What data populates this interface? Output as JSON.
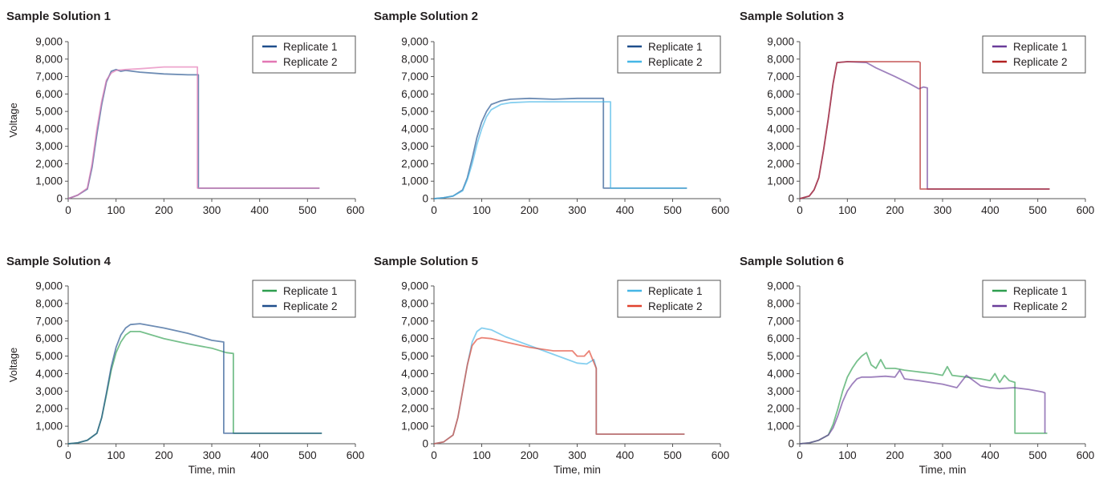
{
  "chart_data": [
    {
      "type": "line",
      "title": "Sample Solution 1",
      "xlabel": "",
      "ylabel": "Voltage",
      "xlim": [
        0,
        600
      ],
      "ylim": [
        0,
        9000
      ],
      "xticks": [
        "0",
        "100",
        "200",
        "300",
        "400",
        "500",
        "600"
      ],
      "yticks": [
        "0",
        "1,000",
        "2,000",
        "3,000",
        "4,000",
        "5,000",
        "6,000",
        "7,000",
        "8,000",
        "9,000"
      ],
      "legend_position": "top-right",
      "series": [
        {
          "name": "Replicate 1",
          "color": "#1f4e8c",
          "x": [
            0,
            20,
            40,
            50,
            60,
            70,
            80,
            90,
            100,
            110,
            120,
            150,
            200,
            250,
            272,
            272,
            300,
            400,
            525
          ],
          "y": [
            0,
            200,
            550,
            1800,
            3700,
            5400,
            6700,
            7300,
            7400,
            7300,
            7350,
            7250,
            7150,
            7100,
            7100,
            600,
            600,
            600,
            600
          ]
        },
        {
          "name": "Replicate 2",
          "color": "#e377b4",
          "x": [
            0,
            20,
            40,
            50,
            60,
            70,
            80,
            90,
            100,
            120,
            150,
            200,
            250,
            270,
            270,
            300,
            400,
            525
          ],
          "y": [
            0,
            200,
            600,
            2000,
            4000,
            5600,
            6800,
            7200,
            7350,
            7400,
            7450,
            7550,
            7550,
            7550,
            600,
            600,
            600,
            600
          ]
        }
      ]
    },
    {
      "type": "line",
      "title": "Sample Solution 2",
      "xlabel": "",
      "ylabel": "",
      "xlim": [
        0,
        600
      ],
      "ylim": [
        0,
        9000
      ],
      "xticks": [
        "0",
        "100",
        "200",
        "300",
        "400",
        "500",
        "600"
      ],
      "yticks": [
        "0",
        "1,000",
        "2,000",
        "3,000",
        "4,000",
        "5,000",
        "6,000",
        "7,000",
        "8,000",
        "9,000"
      ],
      "legend_position": "top-right",
      "series": [
        {
          "name": "Replicate 1",
          "color": "#1f4e8c",
          "x": [
            0,
            20,
            40,
            60,
            70,
            80,
            90,
            100,
            110,
            120,
            140,
            160,
            200,
            250,
            300,
            355,
            355,
            380,
            400,
            530
          ],
          "y": [
            0,
            50,
            150,
            500,
            1200,
            2300,
            3500,
            4400,
            5000,
            5400,
            5600,
            5700,
            5750,
            5700,
            5750,
            5750,
            600,
            600,
            600,
            600
          ]
        },
        {
          "name": "Replicate 2",
          "color": "#45b6e6",
          "x": [
            0,
            20,
            40,
            60,
            70,
            80,
            90,
            100,
            110,
            120,
            140,
            160,
            200,
            250,
            300,
            370,
            370,
            400,
            530
          ],
          "y": [
            0,
            50,
            150,
            450,
            1100,
            2000,
            3100,
            4000,
            4700,
            5100,
            5400,
            5500,
            5550,
            5550,
            5550,
            5550,
            600,
            600,
            600
          ]
        }
      ]
    },
    {
      "type": "line",
      "title": "Sample Solution 3",
      "xlabel": "",
      "ylabel": "",
      "xlim": [
        0,
        600
      ],
      "ylim": [
        0,
        9000
      ],
      "xticks": [
        "0",
        "100",
        "200",
        "300",
        "400",
        "500",
        "600"
      ],
      "yticks": [
        "0",
        "1,000",
        "2,000",
        "3,000",
        "4,000",
        "5,000",
        "6,000",
        "7,000",
        "8,000",
        "9,000"
      ],
      "legend_position": "top-right",
      "series": [
        {
          "name": "Replicate 1",
          "color": "#6a3d9a",
          "x": [
            0,
            20,
            30,
            40,
            50,
            60,
            70,
            78,
            100,
            140,
            160,
            200,
            230,
            250,
            260,
            268,
            268,
            300,
            400,
            525
          ],
          "y": [
            0,
            150,
            500,
            1200,
            2800,
            4600,
            6600,
            7800,
            7850,
            7800,
            7500,
            7000,
            6600,
            6300,
            6400,
            6350,
            550,
            550,
            550,
            550
          ]
        },
        {
          "name": "Replicate 2",
          "color": "#b22222",
          "x": [
            0,
            20,
            30,
            40,
            50,
            60,
            70,
            78,
            100,
            200,
            250,
            253,
            253,
            300,
            400,
            525
          ],
          "y": [
            0,
            150,
            500,
            1200,
            2800,
            4600,
            6600,
            7800,
            7850,
            7850,
            7850,
            7800,
            550,
            550,
            550,
            550
          ]
        }
      ]
    },
    {
      "type": "line",
      "title": "Sample Solution 4",
      "xlabel": "Time, min",
      "ylabel": "Voltage",
      "xlim": [
        0,
        600
      ],
      "ylim": [
        0,
        9000
      ],
      "xticks": [
        "0",
        "100",
        "200",
        "300",
        "400",
        "500",
        "600"
      ],
      "yticks": [
        "0",
        "1,000",
        "2,000",
        "3,000",
        "4,000",
        "5,000",
        "6,000",
        "7,000",
        "8,000",
        "9,000"
      ],
      "legend_position": "top-right",
      "series": [
        {
          "name": "Replicate 1",
          "color": "#2e9e4f",
          "x": [
            0,
            20,
            40,
            60,
            70,
            80,
            90,
            100,
            110,
            120,
            130,
            150,
            200,
            250,
            300,
            330,
            345,
            345,
            400,
            530
          ],
          "y": [
            0,
            50,
            200,
            600,
            1500,
            2800,
            4200,
            5200,
            5800,
            6200,
            6400,
            6400,
            6000,
            5700,
            5450,
            5200,
            5150,
            600,
            600,
            600
          ]
        },
        {
          "name": "Replicate 2",
          "color": "#1f4e8c",
          "x": [
            0,
            20,
            40,
            60,
            70,
            80,
            90,
            100,
            110,
            120,
            130,
            150,
            200,
            250,
            300,
            325,
            325,
            400,
            530
          ],
          "y": [
            0,
            50,
            200,
            600,
            1500,
            2900,
            4400,
            5500,
            6200,
            6600,
            6800,
            6850,
            6600,
            6300,
            5900,
            5800,
            600,
            600,
            600
          ]
        }
      ]
    },
    {
      "type": "line",
      "title": "Sample Solution 5",
      "xlabel": "Time, min",
      "ylabel": "",
      "xlim": [
        0,
        600
      ],
      "ylim": [
        0,
        9000
      ],
      "xticks": [
        "0",
        "100",
        "200",
        "300",
        "400",
        "500",
        "600"
      ],
      "yticks": [
        "0",
        "1,000",
        "2,000",
        "3,000",
        "4,000",
        "5,000",
        "6,000",
        "7,000",
        "8,000",
        "9,000"
      ],
      "legend_position": "top-right",
      "series": [
        {
          "name": "Replicate 1",
          "color": "#45b6e6",
          "x": [
            0,
            20,
            40,
            50,
            60,
            70,
            80,
            90,
            100,
            120,
            150,
            200,
            250,
            300,
            320,
            335,
            340,
            340,
            400,
            525
          ],
          "y": [
            0,
            100,
            500,
            1500,
            3000,
            4500,
            5800,
            6400,
            6600,
            6500,
            6100,
            5600,
            5100,
            4600,
            4550,
            4800,
            4300,
            550,
            550,
            550
          ]
        },
        {
          "name": "Replicate 2",
          "color": "#e0422e",
          "x": [
            0,
            20,
            40,
            50,
            60,
            70,
            80,
            90,
            100,
            120,
            150,
            200,
            250,
            290,
            300,
            315,
            325,
            340,
            340,
            400,
            525
          ],
          "y": [
            0,
            100,
            500,
            1500,
            3000,
            4500,
            5600,
            5950,
            6050,
            6000,
            5800,
            5500,
            5300,
            5300,
            5000,
            5000,
            5300,
            4300,
            550,
            550,
            550
          ]
        }
      ]
    },
    {
      "type": "line",
      "title": "Sample Solution 6",
      "xlabel": "Time, min",
      "ylabel": "",
      "xlim": [
        0,
        600
      ],
      "ylim": [
        0,
        9000
      ],
      "xticks": [
        "0",
        "100",
        "200",
        "300",
        "400",
        "500",
        "600"
      ],
      "yticks": [
        "0",
        "1,000",
        "2,000",
        "3,000",
        "4,000",
        "5,000",
        "6,000",
        "7,000",
        "8,000",
        "9,000"
      ],
      "legend_position": "top-right",
      "series": [
        {
          "name": "Replicate 1",
          "color": "#2e9e4f",
          "x": [
            0,
            20,
            40,
            60,
            70,
            80,
            90,
            100,
            110,
            120,
            130,
            140,
            150,
            160,
            170,
            180,
            200,
            220,
            250,
            280,
            300,
            310,
            320,
            350,
            380,
            400,
            410,
            420,
            430,
            440,
            452,
            452,
            500,
            520
          ],
          "y": [
            0,
            50,
            200,
            500,
            1100,
            2000,
            3000,
            3800,
            4300,
            4700,
            5000,
            5200,
            4500,
            4300,
            4800,
            4300,
            4300,
            4200,
            4100,
            4000,
            3900,
            4400,
            3900,
            3800,
            3700,
            3600,
            4000,
            3500,
            3900,
            3600,
            3500,
            600,
            600,
            600
          ]
        },
        {
          "name": "Replicate 2",
          "color": "#6a3d9a",
          "x": [
            0,
            20,
            40,
            60,
            70,
            80,
            90,
            100,
            110,
            120,
            130,
            150,
            180,
            200,
            210,
            220,
            250,
            300,
            330,
            350,
            380,
            400,
            420,
            450,
            480,
            500,
            510,
            515,
            515
          ],
          "y": [
            0,
            50,
            200,
            500,
            900,
            1600,
            2400,
            3000,
            3400,
            3700,
            3800,
            3800,
            3850,
            3800,
            4200,
            3700,
            3600,
            3400,
            3200,
            3900,
            3300,
            3200,
            3150,
            3200,
            3100,
            3000,
            2950,
            2900,
            600
          ]
        }
      ]
    }
  ]
}
